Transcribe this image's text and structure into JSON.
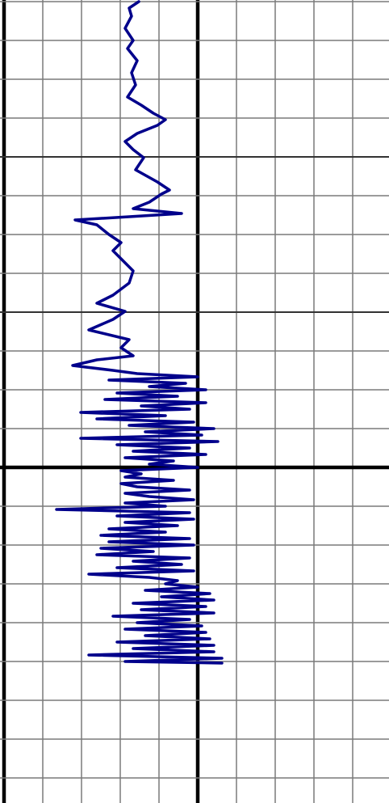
{
  "chart_data": {
    "type": "line",
    "orientation": "vertical",
    "xlim": [
      0,
      480
    ],
    "ylim": [
      0,
      991
    ],
    "xticks": [
      0,
      48,
      96,
      144,
      192,
      240,
      288,
      336,
      384,
      432
    ],
    "yticks": [
      0,
      48,
      96,
      144,
      192,
      240,
      288,
      336,
      384,
      432,
      480,
      528,
      576,
      624,
      672,
      720,
      768,
      816,
      864,
      912,
      960
    ],
    "major_xticks": [
      0,
      240
    ],
    "major_yticks": [
      576
    ],
    "medium_yticks": [
      192,
      384
    ],
    "grid": true,
    "y": [
      0,
      8,
      18,
      33,
      48,
      58,
      73,
      88,
      103,
      118,
      128,
      138,
      146,
      153,
      163,
      173,
      183,
      193,
      208,
      223,
      233,
      238,
      248,
      256,
      262,
      266,
      270,
      276,
      288,
      298,
      308,
      318,
      333,
      348,
      363,
      373,
      383,
      393,
      406,
      418,
      428,
      438,
      443,
      450,
      456,
      460,
      464,
      468,
      472,
      476,
      480,
      484,
      488,
      492,
      496,
      500,
      504,
      508,
      512,
      516,
      520,
      524,
      528,
      532,
      536,
      540,
      544,
      548,
      552,
      556,
      560,
      564,
      568,
      572,
      576,
      580,
      584,
      588,
      592,
      596,
      600,
      604,
      608,
      612,
      616,
      620,
      624,
      628,
      632,
      636,
      640,
      644,
      648,
      652,
      656,
      660,
      664,
      668,
      672,
      676,
      680,
      684,
      688,
      692,
      696,
      700,
      704,
      708,
      712,
      716,
      720,
      724,
      728,
      732,
      736,
      740,
      744,
      748,
      752,
      756,
      760,
      764,
      768,
      772,
      776,
      780,
      784,
      788,
      792,
      796,
      800,
      804,
      808,
      812,
      816,
      818
    ],
    "series": [
      {
        "color": "#00008b",
        "values": [
          167,
          155,
          158,
          150,
          160,
          153,
          165,
          158,
          163,
          153,
          170,
          185,
          200,
          190,
          165,
          150,
          160,
          173,
          163,
          190,
          205,
          195,
          180,
          160,
          220,
          155,
          88,
          115,
          130,
          145,
          135,
          145,
          160,
          155,
          135,
          115,
          150,
          135,
          105,
          155,
          145,
          160,
          115,
          85,
          135,
          165,
          240,
          130,
          225,
          180,
          250,
          140,
          215,
          125,
          250,
          170,
          230,
          95,
          200,
          115,
          235,
          155,
          260,
          175,
          245,
          95,
          265,
          140,
          230,
          160,
          250,
          150,
          210,
          180,
          240,
          145,
          170,
          150,
          210,
          145,
          165,
          230,
          150,
          180,
          235,
          150,
          200,
          65,
          230,
          140,
          235,
          150,
          215,
          130,
          200,
          120,
          230,
          130,
          235,
          120,
          185,
          115,
          230,
          160,
          220,
          140,
          235,
          105,
          180,
          215,
          200,
          240,
          175,
          255,
          195,
          260,
          160,
          250,
          170,
          260,
          135,
          230,
          165,
          245,
          150,
          250,
          175,
          255,
          140,
          260,
          160,
          260,
          105,
          270,
          150,
          270
        ]
      }
    ]
  }
}
